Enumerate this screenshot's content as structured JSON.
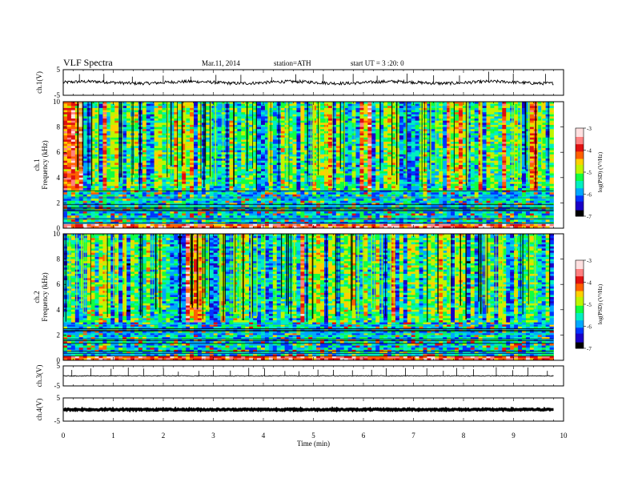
{
  "header": {
    "title": "VLF Spectra",
    "date": "Mar.11, 2014",
    "station": "station=ATH",
    "start": "start UT = 3 :20: 0"
  },
  "chart_data": [
    {
      "type": "line",
      "panel": "ch1-waveform",
      "ylabel": "ch.1(V)",
      "yticks": [
        "5",
        "-5"
      ],
      "ylim": [
        -5,
        5
      ],
      "xlim": [
        0,
        10
      ],
      "trace_end_min": 9.8,
      "baseline": 0
    },
    {
      "type": "heatmap",
      "panel": "ch1-spectrogram",
      "ylabel": "ch.1 Frequency (kHz)",
      "yticks": [
        "0",
        "2",
        "4",
        "6",
        "8",
        "10"
      ],
      "ylim": [
        0,
        10
      ],
      "xlim": [
        0,
        10
      ],
      "data_end_min": 9.8,
      "colorbar": {
        "label": "log(PSD) (V²/Hz)",
        "ticks": [
          "-3",
          "-4",
          "-5",
          "-6",
          "-7"
        ],
        "range": [
          -7,
          -3
        ]
      }
    },
    {
      "type": "heatmap",
      "panel": "ch2-spectrogram",
      "ylabel": "ch.2 Frequency (kHz)",
      "yticks": [
        "0",
        "2",
        "4",
        "6",
        "8",
        "10"
      ],
      "ylim": [
        0,
        10
      ],
      "xlim": [
        0,
        10
      ],
      "data_end_min": 9.8,
      "colorbar": {
        "label": "log(PSD) (V²/Hz)",
        "ticks": [
          "-3",
          "-4",
          "-5",
          "-6",
          "-7"
        ],
        "range": [
          -7,
          -3
        ]
      }
    },
    {
      "type": "line",
      "panel": "ch3-waveform",
      "ylabel": "ch.3(V)",
      "yticks": [
        "5",
        "-5"
      ],
      "ylim": [
        -5,
        5
      ],
      "xlim": [
        0,
        10
      ],
      "trace_end_min": 9.8,
      "baseline": 0
    },
    {
      "type": "line",
      "panel": "ch4-waveform",
      "ylabel": "ch.4(V)",
      "yticks": [
        "5",
        "-5"
      ],
      "ylim": [
        -5,
        5
      ],
      "xlim": [
        0,
        10
      ],
      "trace_end_min": 9.8,
      "baseline": 0
    }
  ],
  "xaxis": {
    "label": "Time (min)",
    "ticks": [
      "0",
      "1",
      "2",
      "3",
      "4",
      "5",
      "6",
      "7",
      "8",
      "9",
      "10"
    ]
  },
  "colors": {
    "palette": [
      "#000000",
      "#1a00c8",
      "#0035ff",
      "#00a8ff",
      "#00f0c0",
      "#10ff40",
      "#bff500",
      "#ffd000",
      "#ff6000",
      "#e01010",
      "#ff8080",
      "#ffe0e0"
    ]
  }
}
